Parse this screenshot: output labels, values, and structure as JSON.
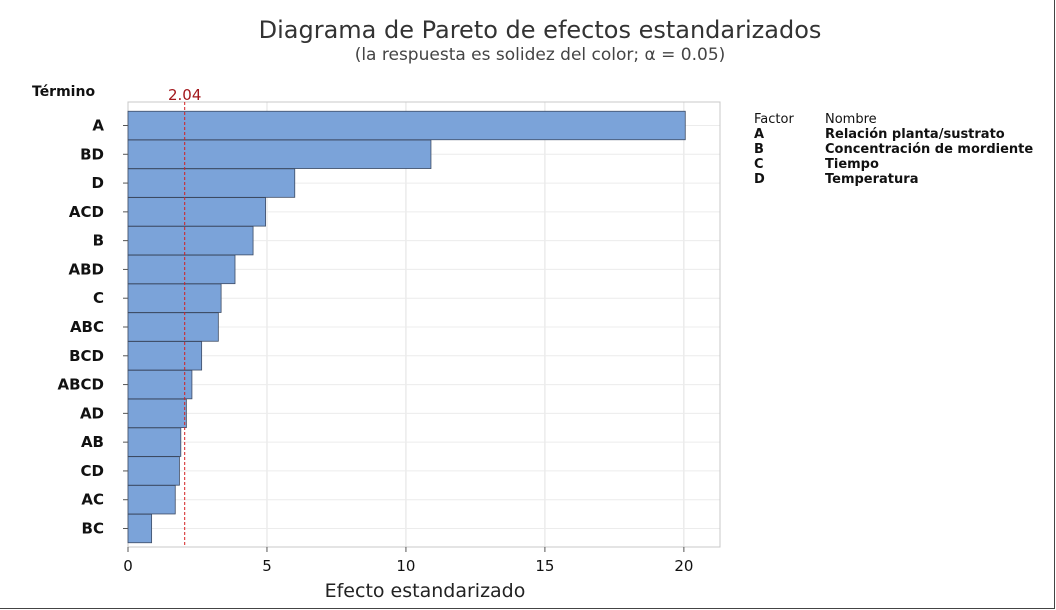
{
  "chart_data": {
    "type": "bar",
    "orientation": "horizontal",
    "title": "Diagrama de Pareto de efectos estandarizados",
    "subtitle": "(la respuesta es solidez del color; α = 0.05)",
    "ylabel": "Término",
    "xlabel": "Efecto estandarizado",
    "categories": [
      "A",
      "BD",
      "D",
      "ACD",
      "B",
      "ABD",
      "C",
      "ABC",
      "BCD",
      "ABCD",
      "AD",
      "AB",
      "CD",
      "AC",
      "BC"
    ],
    "values": [
      20.05,
      10.9,
      6.0,
      4.95,
      4.5,
      3.85,
      3.35,
      3.25,
      2.65,
      2.3,
      2.1,
      1.9,
      1.85,
      1.7,
      0.85
    ],
    "xlim": [
      0,
      21.3
    ],
    "xticks": [
      "0",
      "5",
      "10",
      "15",
      "20"
    ],
    "reference_line": {
      "value": 2.04,
      "label": "2.04",
      "color": "#d42020"
    },
    "bar_color": "#7ba3d9",
    "bar_edge_color": "#3c4a63",
    "grid": true,
    "legend": {
      "header_factor": "Factor",
      "header_name": "Nombre",
      "rows": [
        {
          "factor": "A",
          "name": "Relación planta/sustrato"
        },
        {
          "factor": "B",
          "name": "Concentración de mordiente"
        },
        {
          "factor": "C",
          "name": "Tiempo"
        },
        {
          "factor": "D",
          "name": "Temperatura"
        }
      ]
    }
  }
}
